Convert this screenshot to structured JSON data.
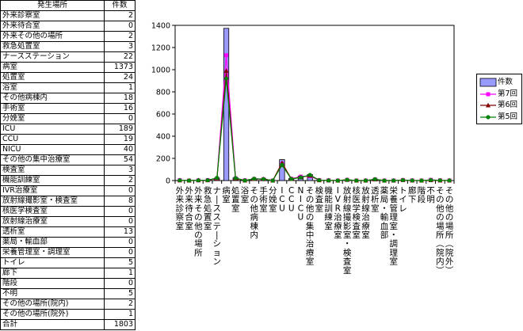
{
  "table": {
    "header": [
      "発生場所",
      "件数"
    ],
    "rows": [
      [
        "外来診察室",
        "2"
      ],
      [
        "外来待合室",
        "0"
      ],
      [
        "外来その他の場所",
        "2"
      ],
      [
        "救急処置室",
        "3"
      ],
      [
        "ナースステーション",
        "22"
      ],
      [
        "病室",
        "1373"
      ],
      [
        "処置室",
        "24"
      ],
      [
        "浴室",
        "1"
      ],
      [
        "その他病棟内",
        "18"
      ],
      [
        "手術室",
        "16"
      ],
      [
        "分娩室",
        "0"
      ],
      [
        "ICU",
        "189"
      ],
      [
        "CCU",
        "19"
      ],
      [
        "NICU",
        "40"
      ],
      [
        "その他の集中治療室",
        "54"
      ],
      [
        "検査室",
        "3"
      ],
      [
        "機能訓練室",
        "2"
      ],
      [
        "IVR治療室",
        "0"
      ],
      [
        "放射線撮影室・検査室",
        "8"
      ],
      [
        "核医学検査室",
        "0"
      ],
      [
        "放射線治療室",
        "0"
      ],
      [
        "透析室",
        "13"
      ],
      [
        "薬局・輸血部",
        "0"
      ],
      [
        "栄養管理室・調理室",
        "0"
      ],
      [
        "トイレ",
        "5"
      ],
      [
        "廊下",
        "1"
      ],
      [
        "階段",
        "0"
      ],
      [
        "不明",
        "5"
      ],
      [
        "その他の場所(院内)",
        "2"
      ],
      [
        "その他の場所(院外)",
        "1"
      ],
      [
        "合計",
        "1803"
      ]
    ]
  },
  "chart_data": {
    "type": "bar",
    "categories": [
      "外来診察室",
      "外来待合室",
      "外来その他の場所",
      "救急処置室",
      "ナースステーション",
      "病室",
      "処置室",
      "浴室",
      "その他病棟内",
      "手術室",
      "分娩室",
      "ICU",
      "CCU",
      "NICU",
      "その他の集中治療室",
      "検査室",
      "機能訓練室",
      "IVR治療室",
      "放射線撮影室・検査室",
      "核医学検査室",
      "放射線治療室",
      "透析室",
      "薬局・輸血部",
      "栄養管理室・調理室",
      "トイレ",
      "廊下",
      "階段",
      "不明",
      "その他の場所(院内)",
      "その他の場所(院外)"
    ],
    "yticks": [
      "0",
      "200",
      "400",
      "600",
      "800",
      "1000",
      "1200",
      "1400"
    ],
    "ylim": [
      0,
      1400
    ],
    "legend_position": "right",
    "series": [
      {
        "name": "件数",
        "kind": "bar",
        "color": "#9999ff",
        "values": [
          2,
          0,
          2,
          3,
          22,
          1373,
          24,
          1,
          18,
          16,
          0,
          189,
          19,
          40,
          54,
          3,
          2,
          0,
          8,
          0,
          0,
          13,
          0,
          0,
          5,
          1,
          0,
          5,
          2,
          1
        ]
      },
      {
        "name": "第7回",
        "kind": "line",
        "marker": "square",
        "color": "#ff00ff",
        "values": [
          3,
          0,
          2,
          4,
          18,
          1130,
          20,
          2,
          14,
          12,
          0,
          150,
          16,
          35,
          40,
          4,
          2,
          0,
          6,
          0,
          0,
          10,
          0,
          0,
          4,
          1,
          0,
          6,
          2,
          1
        ]
      },
      {
        "name": "第6回",
        "kind": "line",
        "marker": "triangle",
        "color": "#800000",
        "values": [
          2,
          0,
          3,
          3,
          20,
          990,
          18,
          1,
          15,
          14,
          0,
          160,
          15,
          30,
          45,
          3,
          2,
          0,
          7,
          0,
          0,
          11,
          0,
          0,
          5,
          1,
          0,
          4,
          1,
          1
        ]
      },
      {
        "name": "第5回",
        "kind": "line",
        "marker": "circle",
        "color": "#008000",
        "values": [
          2,
          0,
          2,
          3,
          24,
          920,
          22,
          1,
          16,
          13,
          0,
          140,
          14,
          28,
          50,
          3,
          1,
          0,
          6,
          0,
          0,
          12,
          0,
          0,
          4,
          1,
          0,
          5,
          2,
          1
        ]
      }
    ]
  }
}
